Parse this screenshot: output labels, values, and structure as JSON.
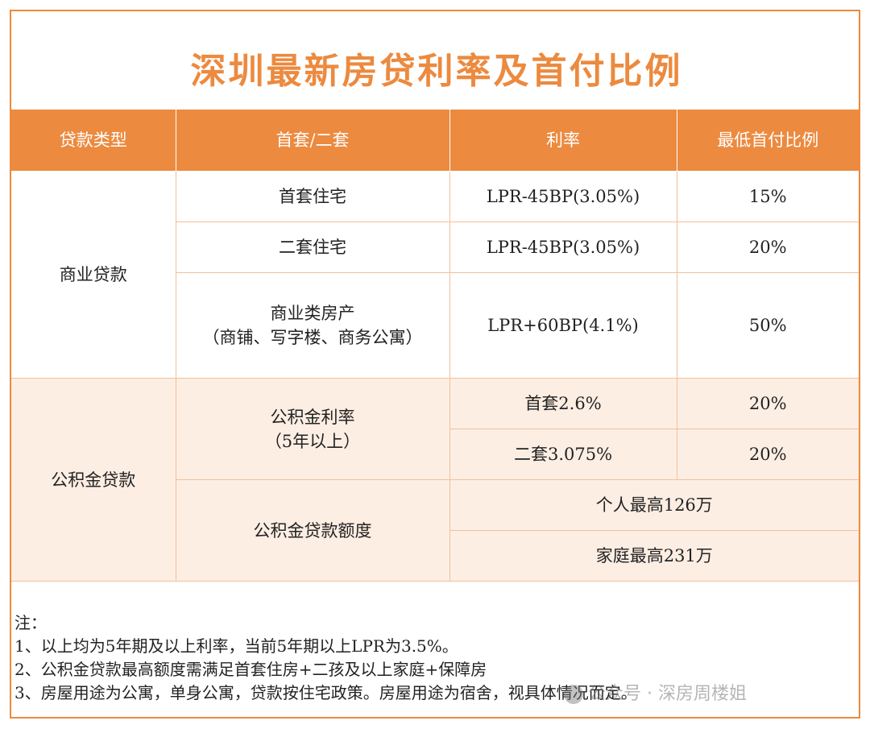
{
  "title": "深圳最新房贷利率及首付比例",
  "headers": [
    "贷款类型",
    "首套/二套",
    "利率",
    "最低首付比例"
  ],
  "commercial": {
    "type": "商业贷款",
    "rows": [
      {
        "kind": "首套住宅",
        "rate": "LPR-45BP(3.05%)",
        "down": "15%"
      },
      {
        "kind": "二套住宅",
        "rate": "LPR-45BP(3.05%)",
        "down": "20%"
      },
      {
        "kind_line1": "商业类房产",
        "kind_line2": "（商铺、写字楼、商务公寓）",
        "rate": "LPR+60BP(4.1%)",
        "down": "50%"
      }
    ]
  },
  "fund": {
    "type": "公积金贷款",
    "rate_label_line1": "公积金利率",
    "rate_label_line2": "（5年以上）",
    "rows": [
      {
        "rate": "首套2.6%",
        "down": "20%"
      },
      {
        "rate": "二套3.075%",
        "down": "20%"
      }
    ],
    "limit_label": "公积金贷款额度",
    "limits": [
      "个人最高126万",
      "家庭最高231万"
    ]
  },
  "notes": {
    "heading": "注：",
    "items": [
      "1、以上均为5年期及以上利率，当前5年期以上LPR为3.5%。",
      "2、公积金贷款最高额度需满足首套住房+二孩及以上家庭+保障房",
      "3、房屋用途为公寓，单身公寓，贷款按住宅政策。房屋用途为宿舍，视具体情况而定。"
    ]
  },
  "watermark": "公众号 · 深房周楼姐"
}
